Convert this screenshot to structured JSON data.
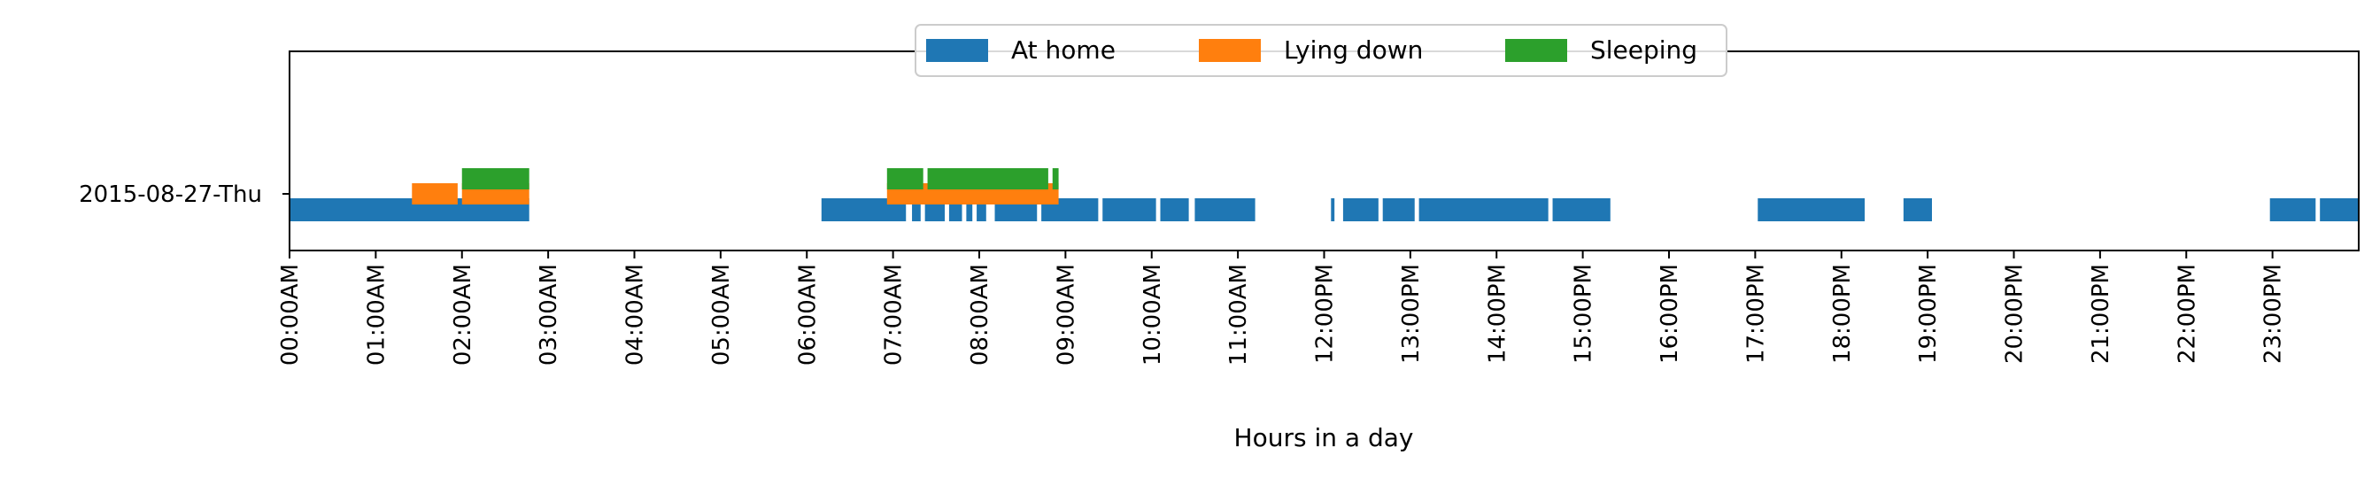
{
  "chart_data": {
    "type": "timeline",
    "xlabel": "Hours in a day",
    "ylabel": "",
    "title": "",
    "xlim": [
      0,
      24
    ],
    "x_ticks": [
      "00:00AM",
      "01:00AM",
      "02:00AM",
      "03:00AM",
      "04:00AM",
      "05:00AM",
      "06:00AM",
      "07:00AM",
      "08:00AM",
      "09:00AM",
      "10:00AM",
      "11:00AM",
      "12:00PM",
      "13:00PM",
      "14:00PM",
      "15:00PM",
      "16:00PM",
      "17:00PM",
      "18:00PM",
      "19:00PM",
      "20:00PM",
      "21:00PM",
      "22:00PM",
      "23:00PM"
    ],
    "day_label": "2015-08-27-Thu",
    "legend_position": "top-center",
    "grid": false,
    "series": [
      {
        "name": "At home",
        "color": "#1f77b4",
        "level": 0,
        "intervals": [
          [
            0.0,
            2.78
          ],
          [
            6.17,
            7.15
          ],
          [
            7.22,
            7.32
          ],
          [
            7.37,
            7.6
          ],
          [
            7.65,
            7.8
          ],
          [
            7.85,
            7.92
          ],
          [
            7.97,
            8.08
          ],
          [
            8.18,
            8.67
          ],
          [
            8.72,
            9.38
          ],
          [
            9.43,
            10.05
          ],
          [
            10.1,
            10.43
          ],
          [
            10.5,
            11.2
          ],
          [
            12.08,
            12.12
          ],
          [
            12.22,
            12.63
          ],
          [
            12.68,
            13.05
          ],
          [
            13.1,
            14.6
          ],
          [
            14.65,
            15.32
          ],
          [
            17.03,
            18.27
          ],
          [
            18.72,
            19.05
          ],
          [
            22.97,
            23.5
          ],
          [
            23.55,
            24.0
          ]
        ]
      },
      {
        "name": "Lying down",
        "color": "#ff7f0e",
        "level": 1,
        "intervals": [
          [
            1.42,
            1.95
          ],
          [
            2.0,
            2.78
          ],
          [
            6.93,
            8.92
          ]
        ]
      },
      {
        "name": "Sleeping",
        "color": "#2ca02c",
        "level": 2,
        "intervals": [
          [
            2.0,
            2.78
          ],
          [
            6.93,
            7.35
          ],
          [
            7.4,
            8.8
          ],
          [
            8.85,
            8.92
          ]
        ]
      }
    ]
  }
}
